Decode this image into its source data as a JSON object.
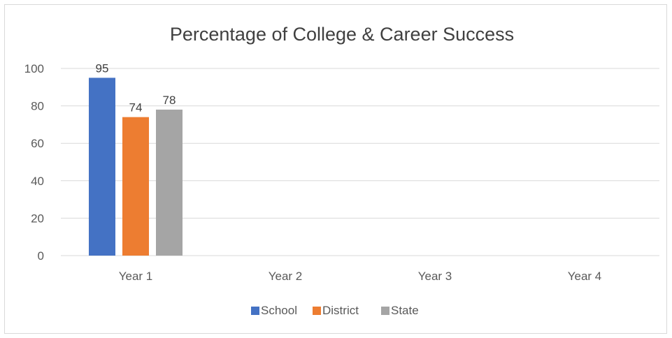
{
  "chart_data": {
    "type": "bar",
    "title": "Percentage of College & Career Success",
    "xlabel": "",
    "ylabel": "",
    "categories": [
      "Year 1",
      "Year 2",
      "Year 3",
      "Year 4"
    ],
    "series": [
      {
        "name": "School",
        "color": "#4472C4",
        "values": [
          95,
          null,
          null,
          null
        ]
      },
      {
        "name": "District",
        "color": "#ED7D31",
        "values": [
          74,
          null,
          null,
          null
        ]
      },
      {
        "name": "State",
        "color": "#A5A5A5",
        "values": [
          78,
          null,
          null,
          null
        ]
      }
    ],
    "ylim": [
      0,
      100
    ],
    "yticks": [
      0,
      20,
      40,
      60,
      80,
      100
    ],
    "grid": true,
    "legend_position": "bottom",
    "data_labels": true
  }
}
